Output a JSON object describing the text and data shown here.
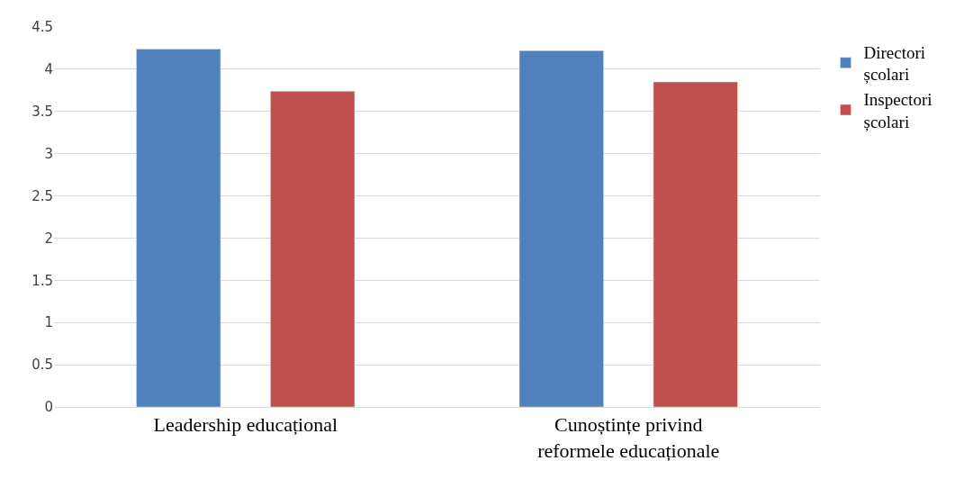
{
  "chart_data": {
    "type": "bar",
    "categories": [
      "Leadership educațional",
      "Cunoștințe privind reformele educaționale"
    ],
    "series": [
      {
        "name": "Directori școlari",
        "color": "#4f81bd",
        "values": [
          4.24,
          4.22
        ]
      },
      {
        "name": "Inspectori școlari",
        "color": "#c0504d",
        "values": [
          3.74,
          3.85
        ]
      }
    ],
    "ylim": [
      0,
      4.5
    ],
    "yticks": [
      0,
      0.5,
      1,
      1.5,
      2,
      2.5,
      3,
      3.5,
      4,
      4.5
    ],
    "grid": "y",
    "legend": "right"
  }
}
